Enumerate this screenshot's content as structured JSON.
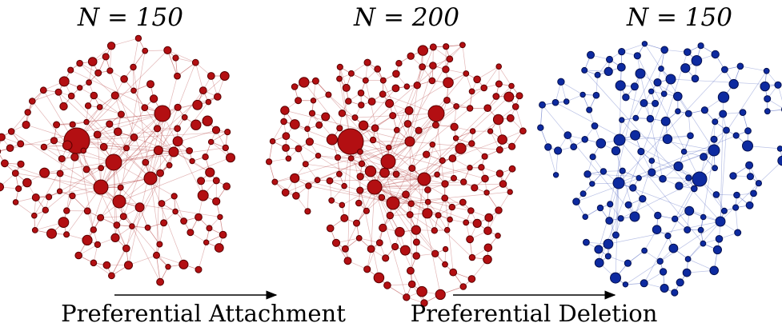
{
  "panels": [
    {
      "id": "left",
      "title": "N = 150",
      "color": "red"
    },
    {
      "id": "middle",
      "title": "N = 200",
      "color": "red"
    },
    {
      "id": "right",
      "title": "N = 150",
      "color": "blue"
    }
  ],
  "arrows": [
    {
      "label": "Preferential Attachment"
    },
    {
      "label": "Preferential Deletion"
    }
  ],
  "colors": {
    "red_node": "#b30f12",
    "blue_node": "#0d2aa0"
  }
}
